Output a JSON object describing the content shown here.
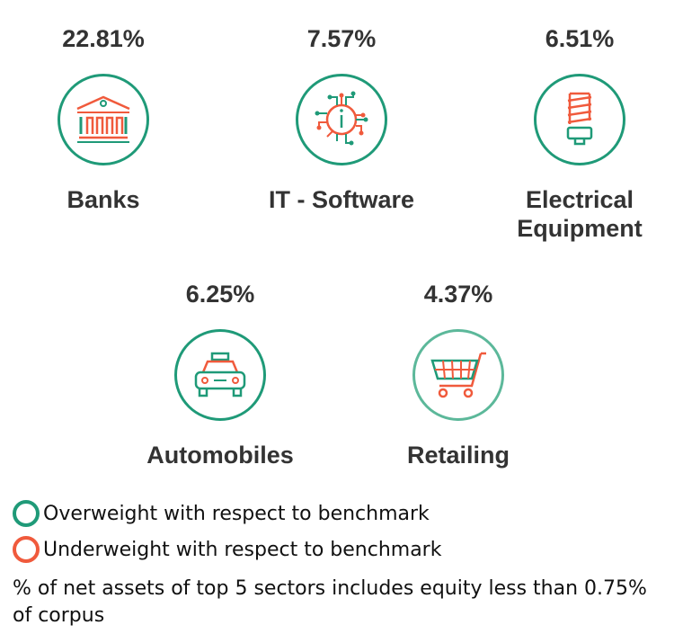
{
  "sectors": [
    {
      "name": "Banks",
      "percent": "22.81%",
      "icon": "bank-building-icon",
      "weight": "overweight"
    },
    {
      "name": "IT - Software",
      "percent": "7.57%",
      "icon": "circuit-chip-icon",
      "weight": "overweight"
    },
    {
      "name": "Electrical Equipment",
      "percent": "6.51%",
      "icon": "light-bulb-icon",
      "weight": "overweight"
    },
    {
      "name": "Automobiles",
      "percent": "6.25%",
      "icon": "car-icon",
      "weight": "overweight"
    },
    {
      "name": "Retailing",
      "percent": "4.37%",
      "icon": "shopping-cart-icon",
      "weight": "overweight"
    }
  ],
  "legend": {
    "overweight": "Overweight with respect to benchmark",
    "underweight": "Underweight with respect to benchmark"
  },
  "note": "% of net assets of top 5 sectors includes equity less than 0.75% of corpus",
  "colors": {
    "overweight": "#1f9a78",
    "underweight": "#f05a3c"
  }
}
